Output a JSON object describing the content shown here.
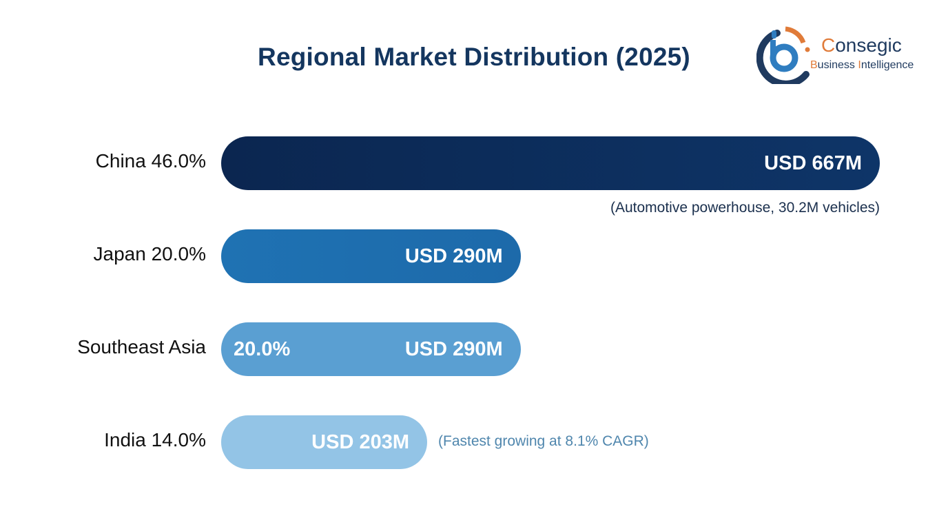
{
  "chart_data": {
    "type": "bar",
    "orientation": "horizontal",
    "title": "Regional Market Distribution (2025)",
    "categories": [
      "China",
      "Japan",
      "Southeast Asia",
      "India"
    ],
    "series": [
      {
        "values": [
          667,
          290,
          290,
          203
        ]
      }
    ],
    "unit": "USD M",
    "shares": [
      "46.0%",
      "20.0%",
      "20.0%",
      "14.0%"
    ],
    "row_labels": [
      "China 46.0%",
      "Japan 20.0%",
      "Southeast Asia",
      "India 14.0%"
    ],
    "inside_pct_labels": [
      "",
      "",
      "20.0%",
      ""
    ],
    "value_labels": [
      "USD 667M",
      "USD 290M",
      "USD 290M",
      "USD 203M"
    ],
    "annotations": [
      "(Automotive powerhouse, 30.2M vehicles)",
      "",
      "",
      "(Fastest growing at 8.1% CAGR)"
    ],
    "colors": [
      "#0b2650",
      "#1f72b3",
      "#5a9fd2",
      "#93c4e6"
    ],
    "annotation_colors": [
      "#1a2f4d",
      "",
      "",
      "#4f86ad"
    ],
    "grid": false,
    "legend": "none"
  },
  "logo": {
    "name": "Consegic",
    "tagline": "Business Intelligence",
    "colors": {
      "blue": "#1f5f9e",
      "navy": "#1f3a5f",
      "orange": "#e07b39"
    }
  }
}
